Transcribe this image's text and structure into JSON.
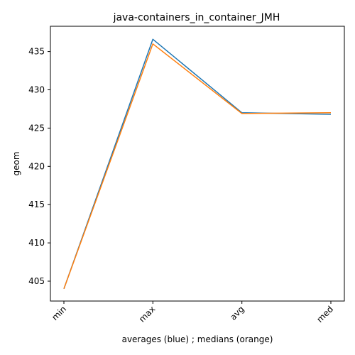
{
  "chart_data": {
    "type": "line",
    "title": "java-containers_in_container_JMH",
    "xlabel": "averages (blue) ; medians (orange)",
    "ylabel": "geom",
    "categories": [
      "min",
      "max",
      "avg",
      "med"
    ],
    "ylim": [
      402.4,
      438.3
    ],
    "yticks": [
      405,
      410,
      415,
      420,
      425,
      430,
      435
    ],
    "grid": false,
    "series": [
      {
        "color": "#1f77b4",
        "values": [
          404.0,
          436.6,
          427.0,
          426.8
        ]
      },
      {
        "color": "#ff7f0e",
        "values": [
          404.0,
          436.0,
          426.9,
          427.0
        ]
      }
    ]
  }
}
